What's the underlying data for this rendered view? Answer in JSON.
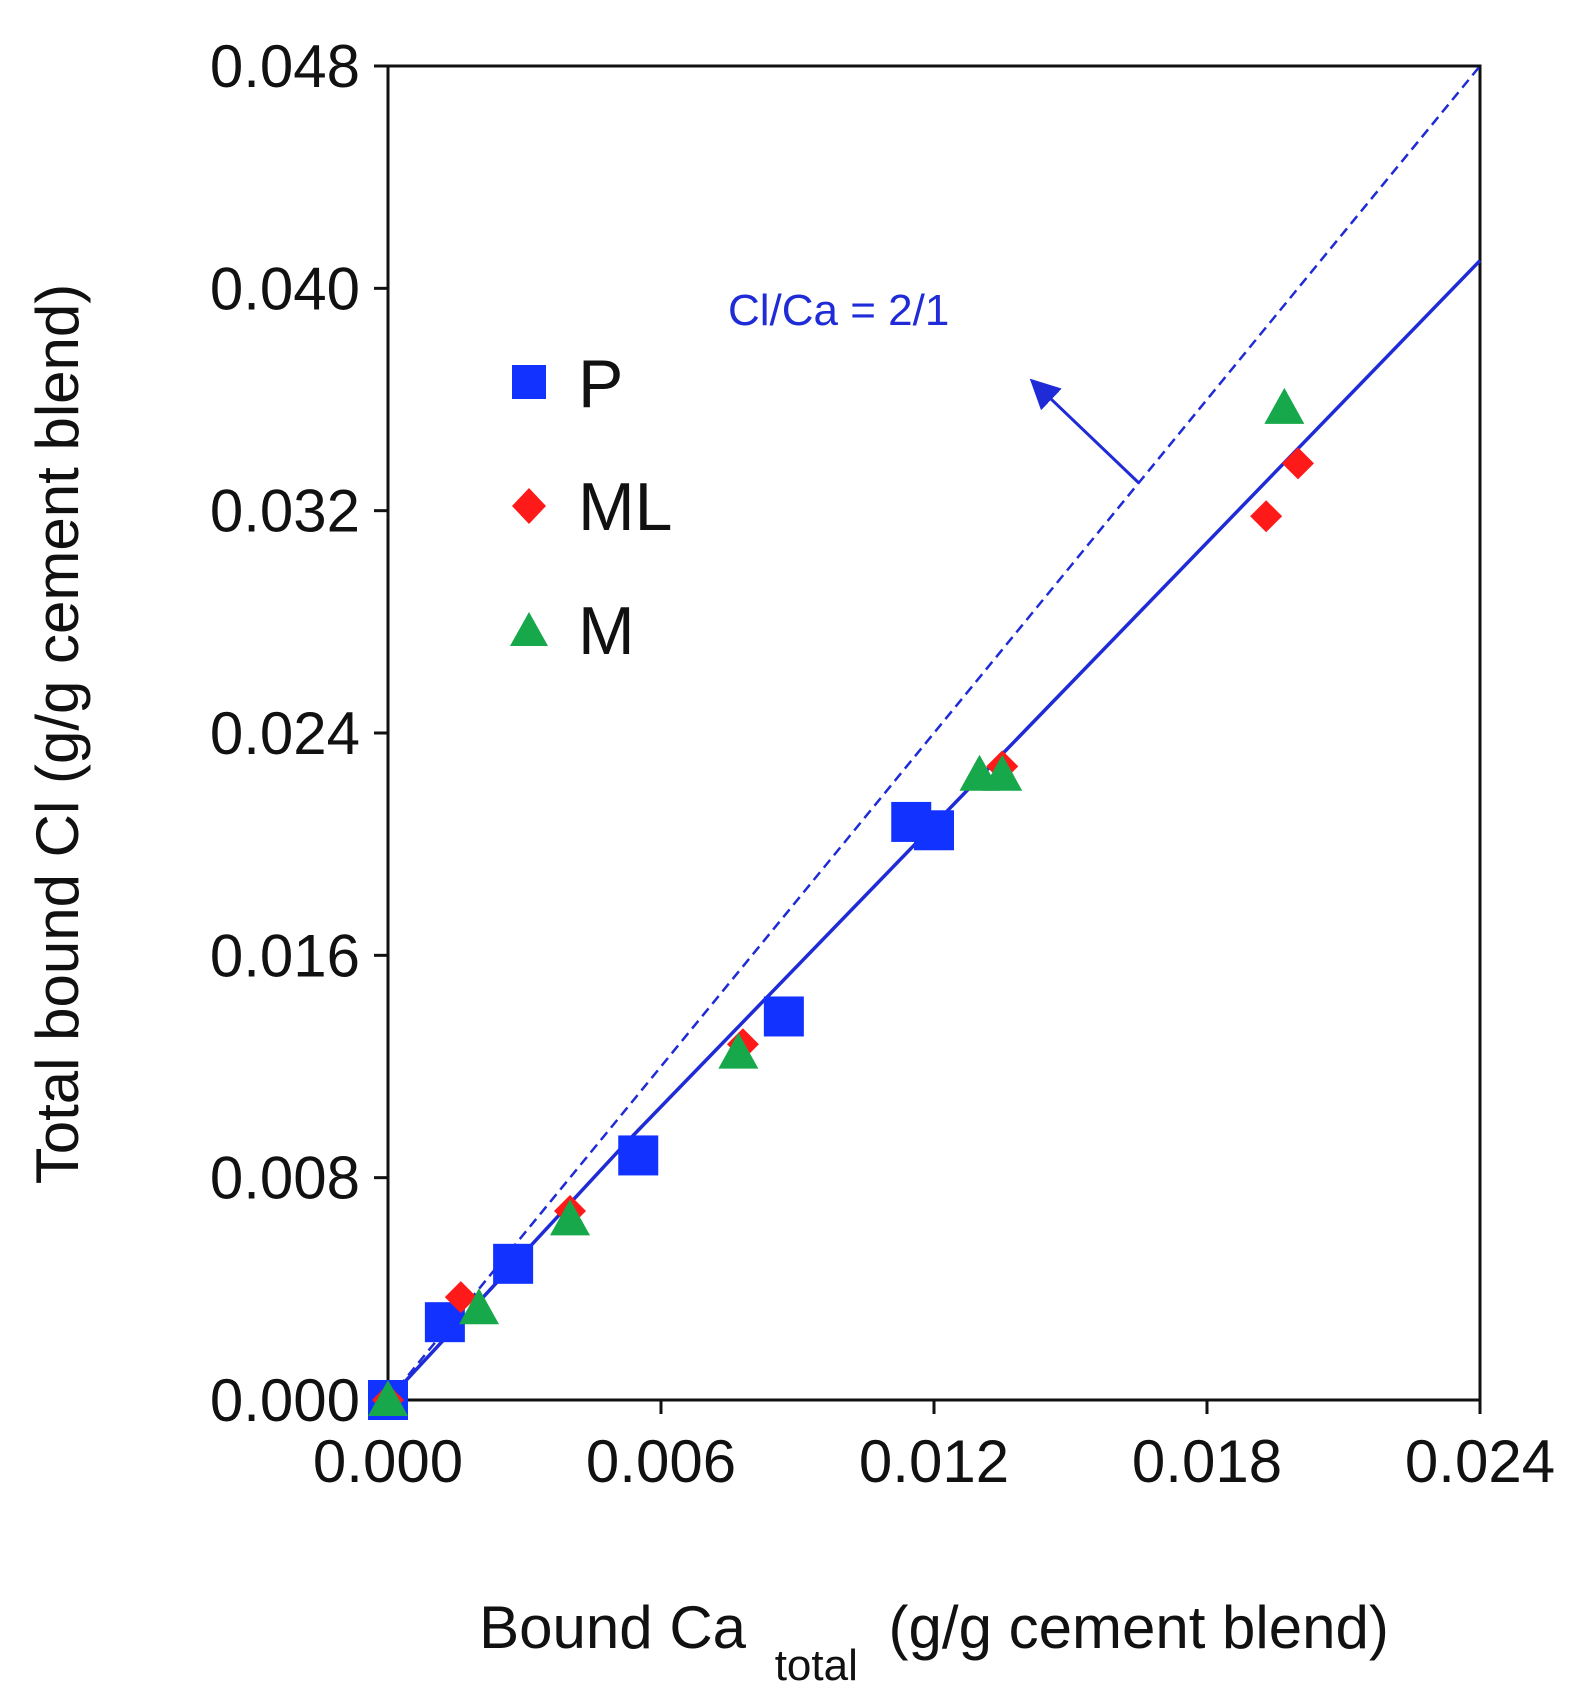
{
  "colors": {
    "fit_line": "#1f2bd6",
    "P": "#1232ff",
    "ML": "#ff1a1a",
    "M": "#16a84a",
    "axis": "#111111"
  },
  "chart_data": {
    "type": "scatter",
    "title": "",
    "xlabel": "Bound Ca",
    "xlabel_subscript": "total",
    "xlabel_suffix": "(g/g cement blend)",
    "ylabel": "Total bound Cl (g/g cement blend)",
    "xlim": [
      0,
      0.024
    ],
    "ylim": [
      0,
      0.048
    ],
    "xticks": [
      0.0,
      0.006,
      0.012,
      0.018,
      0.024
    ],
    "xtick_labels": [
      "0.000",
      "0.006",
      "0.012",
      "0.018",
      "0.024"
    ],
    "yticks": [
      0.0,
      0.008,
      0.016,
      0.024,
      0.032,
      0.04,
      0.048
    ],
    "ytick_labels": [
      "0.000",
      "0.008",
      "0.016",
      "0.024",
      "0.032",
      "0.040",
      "0.048"
    ],
    "grid": false,
    "legend_position": "upper-left",
    "series": [
      {
        "name": "P",
        "marker": "square",
        "x": [
          0.0,
          0.00125,
          0.00275,
          0.0055,
          0.0087,
          0.0115,
          0.012
        ],
        "y": [
          0.0,
          0.0028,
          0.0049,
          0.0088,
          0.0138,
          0.0208,
          0.0205
        ]
      },
      {
        "name": "ML",
        "marker": "diamond",
        "x": [
          0.0,
          0.0016,
          0.004,
          0.0078,
          0.0135,
          0.0193,
          0.02
        ],
        "y": [
          0.0,
          0.0037,
          0.0068,
          0.0128,
          0.0228,
          0.0318,
          0.0337
        ]
      },
      {
        "name": "M",
        "marker": "triangle",
        "x": [
          0.0,
          0.002,
          0.004,
          0.0077,
          0.013,
          0.0135,
          0.0197
        ],
        "y": [
          0.0,
          0.0033,
          0.0065,
          0.0125,
          0.0225,
          0.0225,
          0.0357
        ]
      }
    ],
    "lines": [
      {
        "name": "fit",
        "style": "solid",
        "x": [
          0.0,
          0.0052,
          0.024
        ],
        "y": [
          0.0,
          0.0092,
          0.041
        ]
      },
      {
        "name": "Cl/Ca = 2/1",
        "style": "dashed",
        "x": [
          0.0,
          0.024
        ],
        "y": [
          0.0,
          0.048
        ]
      }
    ],
    "annotation": {
      "text": "Cl/Ca = 2/1",
      "arrow_from": [
        0.0165,
        0.033
      ],
      "arrow_to": [
        0.0142,
        0.0366
      ]
    }
  }
}
